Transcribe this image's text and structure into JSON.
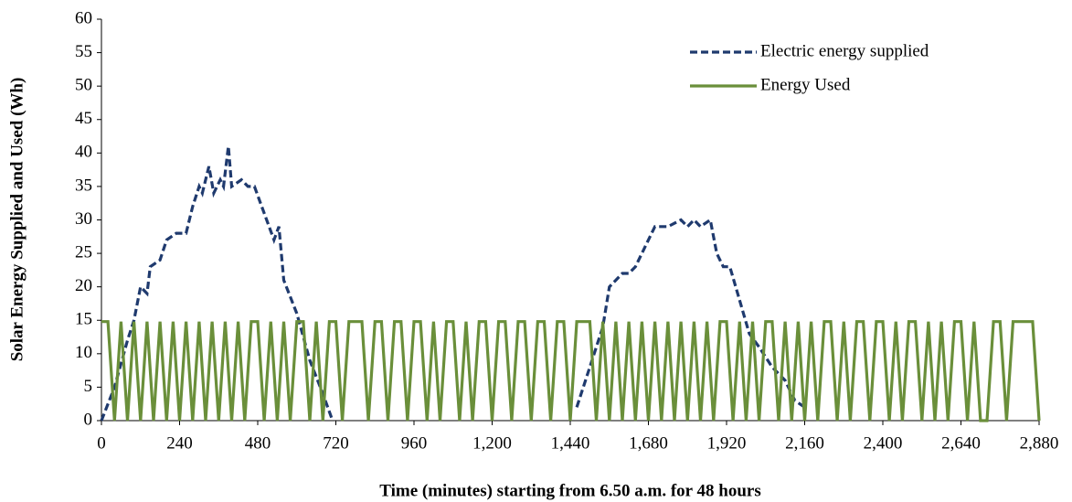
{
  "chart_data": {
    "type": "line",
    "xlabel": "Time (minutes) starting from 6.50 a.m. for 48 hours",
    "ylabel": "Solar Energy Supplied and Used (Wh)",
    "xlim": [
      0,
      2880
    ],
    "ylim": [
      0,
      60
    ],
    "xticks": [
      0,
      240,
      480,
      720,
      960,
      {
        "value": 1200,
        "label": "1,200"
      },
      {
        "value": 1440,
        "label": "1,440"
      },
      {
        "value": 1680,
        "label": "1,680"
      },
      {
        "value": 1920,
        "label": "1,920"
      },
      {
        "value": 2160,
        "label": "2,160"
      },
      {
        "value": 2400,
        "label": "2,400"
      },
      {
        "value": 2640,
        "label": "2,640"
      },
      {
        "value": 2880,
        "label": "2,880"
      }
    ],
    "yticks": [
      0,
      5,
      10,
      15,
      20,
      25,
      30,
      35,
      40,
      45,
      50,
      55,
      60
    ],
    "grid": false,
    "legend": "upper right",
    "series": [
      {
        "name": "Electric energy supplied",
        "color": "#1f3a6e",
        "dash": true,
        "x": [
          0,
          40,
          80,
          100,
          120,
          140,
          150,
          180,
          200,
          230,
          260,
          280,
          300,
          310,
          330,
          345,
          365,
          375,
          390,
          400,
          430,
          450,
          470,
          500,
          530,
          545,
          560,
          600,
          640,
          680,
          710,
          1440,
          1460,
          1500,
          1540,
          1560,
          1580,
          1600,
          1620,
          1640,
          1680,
          1700,
          1740,
          1780,
          1800,
          1820,
          1840,
          1870,
          1890,
          1910,
          1930,
          1960,
          1990,
          2020,
          2060,
          2100,
          2130,
          2160
        ],
        "values": [
          0,
          5,
          12,
          15,
          20,
          19,
          23,
          24,
          27,
          28,
          28,
          32,
          35,
          34,
          38,
          34,
          36,
          35,
          41,
          35,
          36,
          35,
          35,
          31,
          27,
          29,
          21,
          16,
          9,
          4,
          0,
          null,
          2,
          8,
          14,
          20,
          21,
          22,
          22,
          23,
          27,
          29,
          29,
          30,
          29,
          30,
          29,
          30,
          25,
          23,
          23,
          18,
          13,
          11,
          8,
          6,
          3,
          2
        ]
      },
      {
        "name": "Energy Used",
        "color": "#6a8f3a",
        "dash": false,
        "x": [
          0,
          20,
          40,
          60,
          80,
          100,
          120,
          140,
          160,
          180,
          200,
          220,
          240,
          260,
          280,
          300,
          320,
          340,
          360,
          380,
          400,
          420,
          440,
          460,
          480,
          500,
          520,
          540,
          560,
          580,
          600,
          620,
          640,
          660,
          680,
          700,
          720,
          740,
          760,
          780,
          800,
          820,
          840,
          860,
          880,
          900,
          920,
          940,
          960,
          980,
          1000,
          1020,
          1040,
          1060,
          1080,
          1100,
          1120,
          1140,
          1160,
          1180,
          1200,
          1220,
          1240,
          1260,
          1280,
          1300,
          1320,
          1340,
          1360,
          1380,
          1400,
          1420,
          1440,
          1460,
          1480,
          1500,
          1520,
          1540,
          1560,
          1580,
          1600,
          1620,
          1640,
          1660,
          1680,
          1700,
          1720,
          1740,
          1760,
          1780,
          1800,
          1820,
          1840,
          1860,
          1880,
          1900,
          1920,
          1940,
          1960,
          1980,
          2000,
          2020,
          2040,
          2060,
          2080,
          2100,
          2120,
          2140,
          2160,
          2180,
          2200,
          2220,
          2240,
          2260,
          2280,
          2300,
          2320,
          2340,
          2360,
          2380,
          2400,
          2420,
          2440,
          2460,
          2480,
          2500,
          2520,
          2540,
          2560,
          2580,
          2600,
          2620,
          2640,
          2660,
          2680,
          2700,
          2720,
          2740,
          2760,
          2780,
          2800,
          2820,
          2840,
          2860,
          2880
        ],
        "values": [
          14.8,
          14.8,
          0,
          14.8,
          0,
          14.8,
          0,
          14.8,
          0,
          14.8,
          0,
          14.8,
          0,
          14.8,
          0,
          14.8,
          0,
          14.8,
          0,
          14.8,
          0,
          14.8,
          0,
          14.8,
          14.8,
          0,
          14.8,
          0,
          14.8,
          0,
          14.8,
          14.8,
          0,
          14.8,
          0,
          14.8,
          14.8,
          0,
          14.8,
          14.8,
          14.8,
          0,
          14.8,
          14.8,
          0,
          14.8,
          14.8,
          0,
          14.8,
          14.8,
          0,
          14.8,
          0,
          14.8,
          14.8,
          0,
          14.8,
          0,
          14.8,
          14.8,
          0,
          14.8,
          14.8,
          0,
          14.8,
          14.8,
          0,
          14.8,
          14.8,
          0,
          14.8,
          14.8,
          0,
          14.8,
          14.8,
          14.8,
          0,
          14.8,
          0,
          14.8,
          0,
          14.8,
          0,
          14.8,
          0,
          14.8,
          0,
          14.8,
          0,
          14.8,
          0,
          14.8,
          0,
          14.8,
          0,
          14.8,
          14.8,
          0,
          14.8,
          0,
          14.8,
          0,
          14.8,
          14.8,
          0,
          14.8,
          0,
          14.8,
          0,
          14.8,
          0,
          14.8,
          14.8,
          0,
          14.8,
          0,
          14.8,
          14.8,
          0,
          14.8,
          14.8,
          0,
          14.8,
          0,
          14.8,
          14.8,
          0,
          14.8,
          0,
          14.8,
          0,
          14.8,
          14.8,
          0,
          14.8,
          0,
          0,
          14.8,
          14.8,
          0,
          14.8,
          14.8,
          14.8,
          14.8,
          0
        ]
      }
    ]
  }
}
